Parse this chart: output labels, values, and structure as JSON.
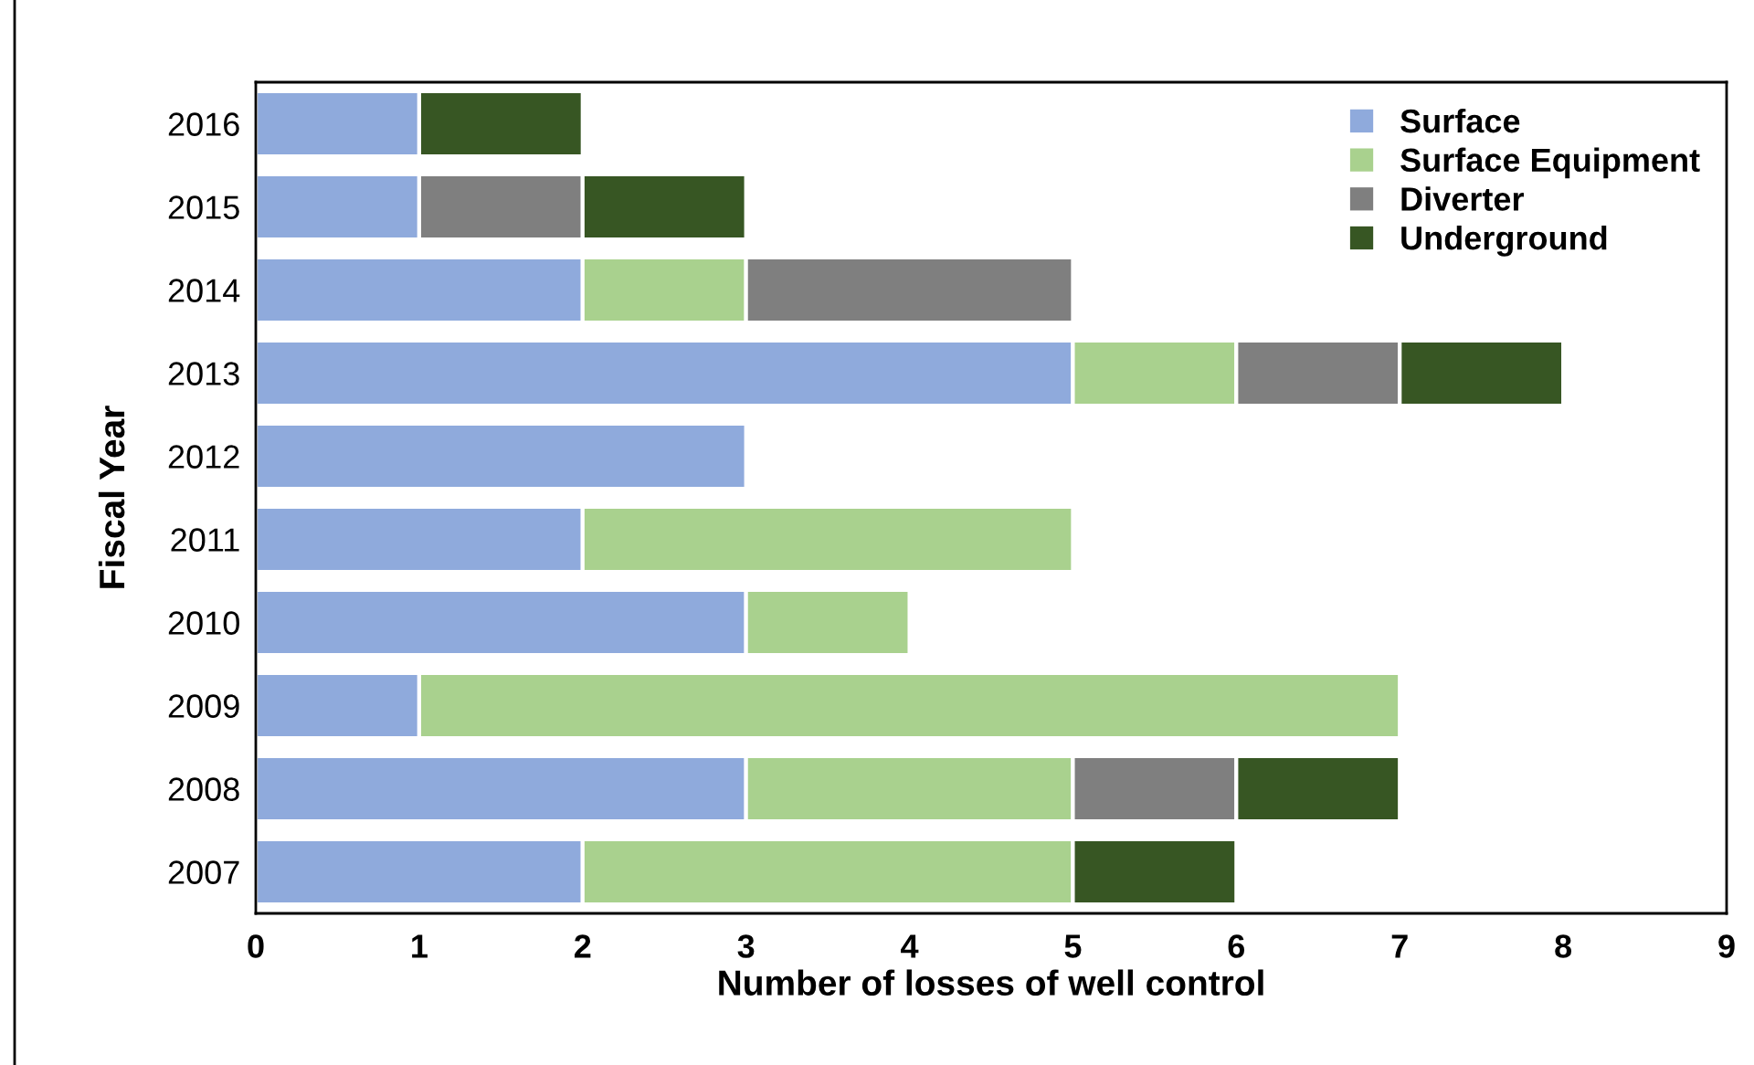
{
  "chart_data": {
    "type": "bar",
    "orientation": "horizontal",
    "stacked": true,
    "xlabel": "Number of losses of well control",
    "ylabel": "Fiscal Year",
    "categories": [
      "2016",
      "2015",
      "2014",
      "2013",
      "2012",
      "2011",
      "2010",
      "2009",
      "2008",
      "2007"
    ],
    "series": [
      {
        "name": "Surface",
        "color": "#8faadc",
        "values": [
          1,
          1,
          2,
          5,
          3,
          2,
          3,
          1,
          3,
          2
        ]
      },
      {
        "name": "Surface Equipment",
        "color": "#a9d18e",
        "values": [
          null,
          null,
          1,
          1,
          null,
          3,
          1,
          6,
          2,
          3
        ]
      },
      {
        "name": "Diverter",
        "color": "#7f7f7f",
        "values": [
          null,
          1,
          2,
          1,
          null,
          null,
          null,
          null,
          1,
          null
        ]
      },
      {
        "name": "Underground",
        "color": "#375623",
        "values": [
          1,
          1,
          null,
          1,
          null,
          null,
          null,
          null,
          1,
          1
        ]
      }
    ],
    "xlim": [
      0,
      9
    ],
    "xticks": [
      0,
      1,
      2,
      3,
      4,
      5,
      6,
      7,
      8,
      9
    ],
    "grid": false,
    "legend": "top right"
  }
}
